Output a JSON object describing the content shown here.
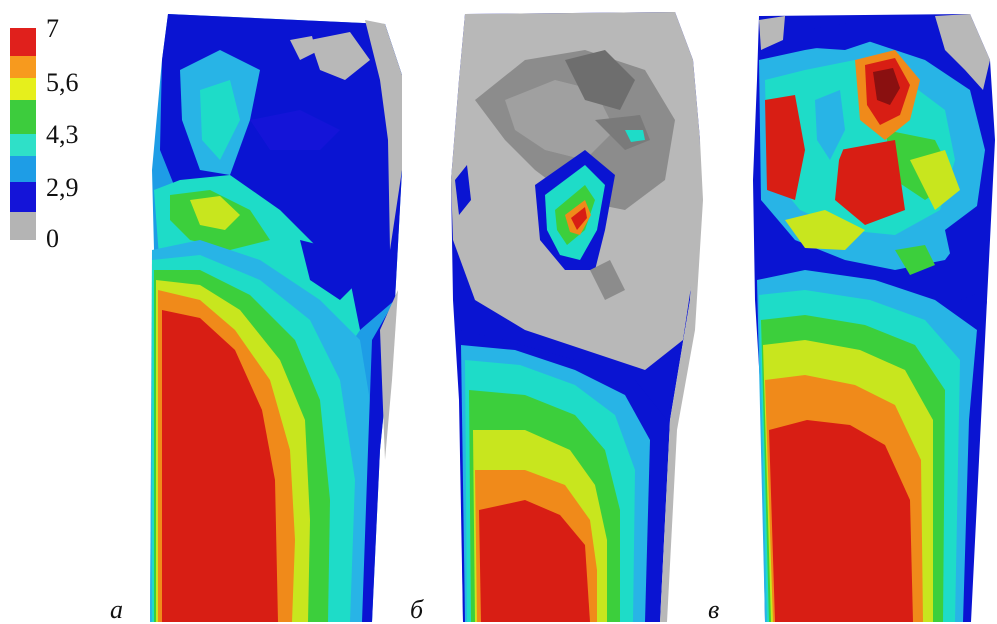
{
  "legend": {
    "labels": [
      "7",
      "5,6",
      "4,3",
      "2,9",
      "0"
    ],
    "colors": [
      "#e0201c",
      "#f79a1e",
      "#e6ef1c",
      "#3dcc3d",
      "#2fe0c8",
      "#1e9de6",
      "#1414d8",
      "#b4b4b4"
    ]
  },
  "panels": [
    {
      "label": "а"
    },
    {
      "label": "б"
    },
    {
      "label": "в"
    }
  ],
  "colors": {
    "red": "#d81e14",
    "orange": "#f08a1a",
    "yellow": "#c8e61e",
    "green": "#3ccf3c",
    "cyan": "#1edcc8",
    "lightblue": "#28b4e6",
    "blue": "#0a14d2",
    "gray": "#b8b8b8",
    "darkgray": "#8c8c8c"
  }
}
